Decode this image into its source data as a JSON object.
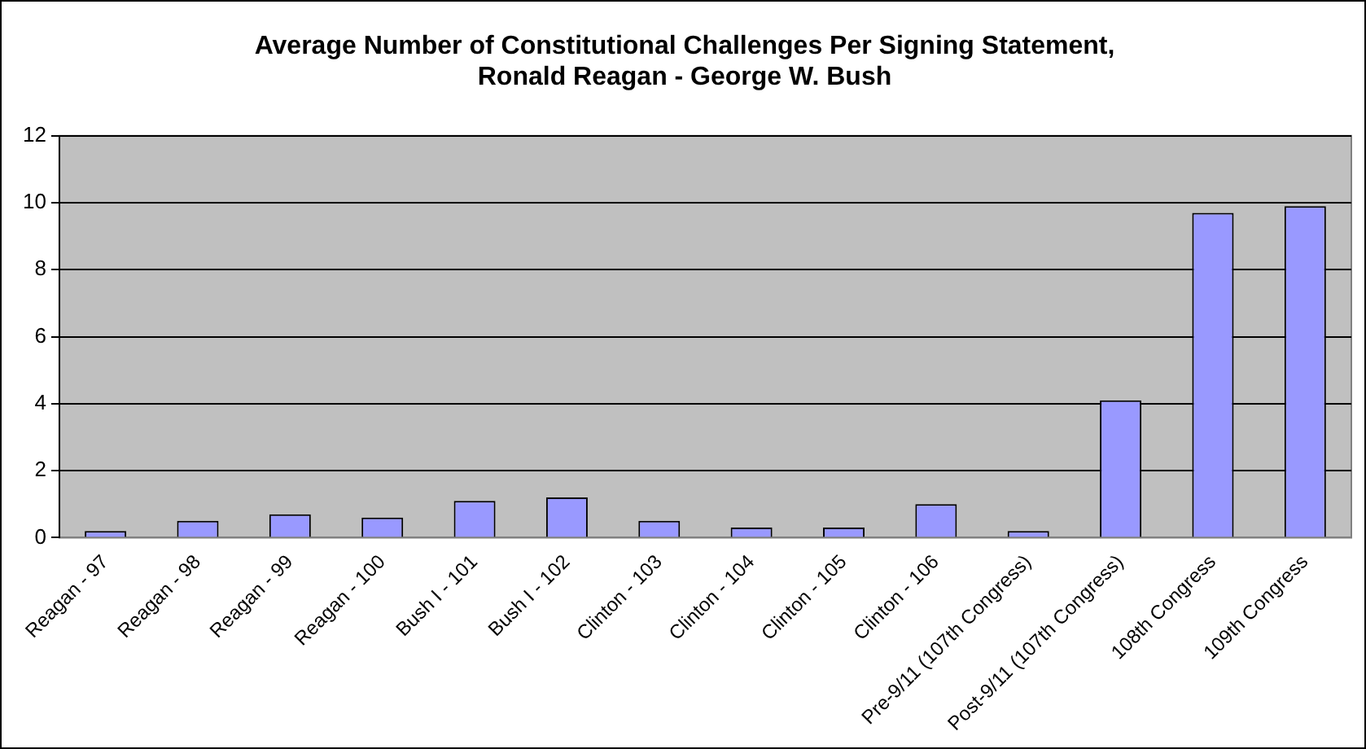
{
  "chart_data": {
    "type": "bar",
    "title": "Average Number of Constitutional Challenges Per Signing Statement,\nRonald Reagan - George W. Bush",
    "categories": [
      "Reagan - 97",
      "Reagan - 98",
      "Reagan - 99",
      "Reagan - 100",
      "Bush I - 101",
      "Bush I - 102",
      "Clinton - 103",
      "Clinton - 104",
      "Clinton - 105",
      "Clinton - 106",
      "Pre-9/11 (107th Congress)",
      "Post-9/11 (107th Congress)",
      "108th Congress",
      "109th Congress"
    ],
    "values": [
      0.2,
      0.5,
      0.7,
      0.6,
      1.1,
      1.2,
      0.5,
      0.3,
      0.3,
      1.0,
      0.2,
      4.1,
      9.7,
      9.9
    ],
    "color": "#9999ff",
    "ylim": [
      0,
      12
    ],
    "yticks": [
      0,
      2,
      4,
      6,
      8,
      10,
      12
    ],
    "grid": "y",
    "legend": false
  }
}
